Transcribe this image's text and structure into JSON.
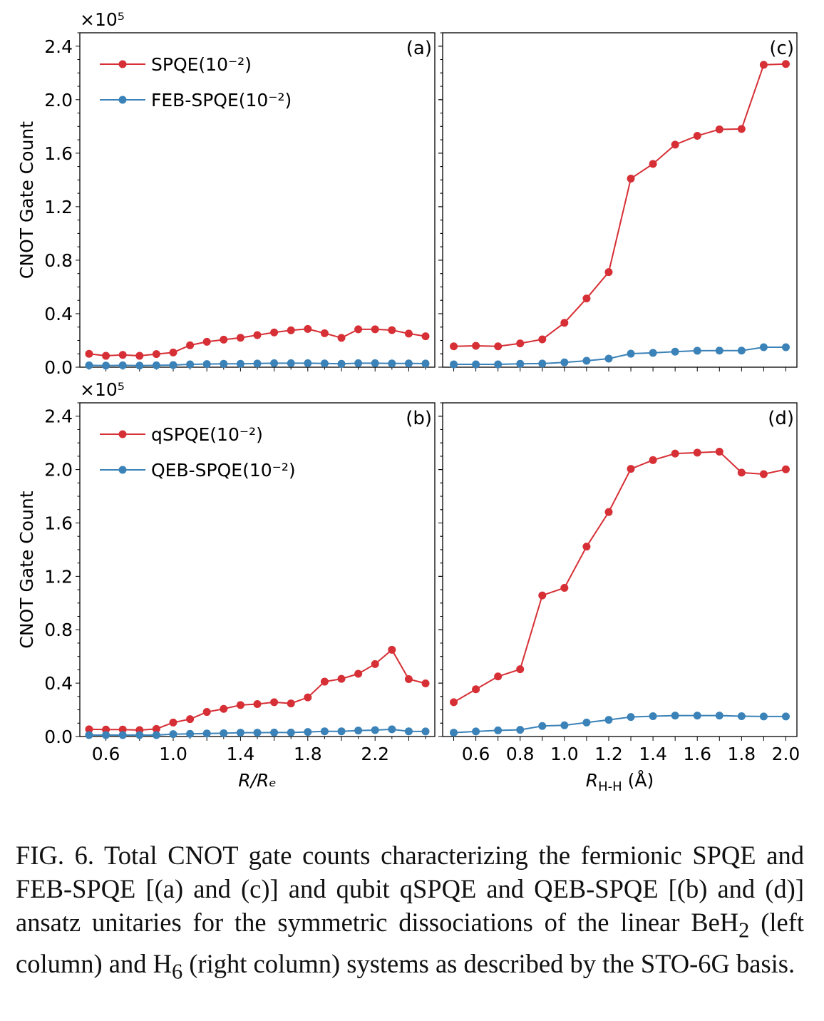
{
  "chart_data": [
    {
      "type": "line",
      "panel_label": "(a)",
      "offset_text": "×10⁵",
      "ylabel": "CNOT Gate Count",
      "xlabel": "",
      "xlim": [
        0.445,
        2.555
      ],
      "ylim": [
        0,
        2.5
      ],
      "yticks": [
        "0.0",
        "0.4",
        "0.8",
        "1.2",
        "1.6",
        "2.0",
        "2.4"
      ],
      "xticks": [],
      "legend_position": "upper-left",
      "grid": false,
      "x": [
        0.5,
        0.6,
        0.7,
        0.8,
        0.9,
        1.0,
        1.1,
        1.2,
        1.3,
        1.4,
        1.5,
        1.6,
        1.7,
        1.8,
        1.9,
        2.0,
        2.1,
        2.2,
        2.3,
        2.4,
        2.5
      ],
      "series": [
        {
          "name": "SPQE(10⁻²)",
          "color": "#d62f35",
          "values": [
            0.1,
            0.085,
            0.092,
            0.085,
            0.098,
            0.11,
            0.164,
            0.19,
            0.206,
            0.22,
            0.24,
            0.26,
            0.276,
            0.286,
            0.254,
            0.219,
            0.283,
            0.283,
            0.277,
            0.251,
            0.231
          ]
        },
        {
          "name": "FEB-SPQE(10⁻²)",
          "color": "#3a82b8",
          "values": [
            0.014,
            0.012,
            0.014,
            0.012,
            0.014,
            0.016,
            0.021,
            0.023,
            0.025,
            0.025,
            0.027,
            0.03,
            0.03,
            0.03,
            0.028,
            0.025,
            0.03,
            0.03,
            0.028,
            0.028,
            0.027
          ]
        }
      ]
    },
    {
      "type": "line",
      "panel_label": "(b)",
      "offset_text": "×10⁵",
      "ylabel": "CNOT Gate Count",
      "xlabel": "R/Rₑ",
      "xlim": [
        0.445,
        2.555
      ],
      "ylim": [
        0,
        2.5
      ],
      "yticks": [
        "0.0",
        "0.4",
        "0.8",
        "1.2",
        "1.6",
        "2.0",
        "2.4"
      ],
      "xticks": [
        "0.6",
        "1.0",
        "1.4",
        "1.8",
        "2.2"
      ],
      "legend_position": "upper-left",
      "grid": false,
      "x": [
        0.5,
        0.6,
        0.7,
        0.8,
        0.9,
        1.0,
        1.1,
        1.2,
        1.3,
        1.4,
        1.5,
        1.6,
        1.7,
        1.8,
        1.9,
        2.0,
        2.1,
        2.2,
        2.3,
        2.4,
        2.5
      ],
      "series": [
        {
          "name": "qSPQE(10⁻²)",
          "color": "#d62f35",
          "values": [
            0.054,
            0.052,
            0.052,
            0.048,
            0.057,
            0.105,
            0.13,
            0.184,
            0.207,
            0.236,
            0.243,
            0.257,
            0.248,
            0.293,
            0.411,
            0.432,
            0.47,
            0.543,
            0.65,
            0.43,
            0.398
          ]
        },
        {
          "name": "QEB-SPQE(10⁻²)",
          "color": "#3a82b8",
          "values": [
            0.011,
            0.011,
            0.011,
            0.011,
            0.011,
            0.018,
            0.02,
            0.023,
            0.025,
            0.029,
            0.029,
            0.03,
            0.03,
            0.034,
            0.039,
            0.039,
            0.045,
            0.048,
            0.054,
            0.039,
            0.038
          ]
        }
      ]
    },
    {
      "type": "line",
      "panel_label": "(c)",
      "xlabel": "",
      "xlim": [
        0.45,
        2.05
      ],
      "ylim": [
        0,
        2.5
      ],
      "xticks": [],
      "grid": false,
      "x": [
        0.5,
        0.6,
        0.7,
        0.8,
        0.9,
        1.0,
        1.1,
        1.2,
        1.3,
        1.4,
        1.5,
        1.6,
        1.7,
        1.8,
        1.9,
        2.0
      ],
      "series": [
        {
          "color": "#d62f35",
          "values": [
            0.156,
            0.16,
            0.156,
            0.178,
            0.208,
            0.332,
            0.514,
            0.711,
            1.41,
            1.52,
            1.664,
            1.73,
            1.778,
            1.781,
            2.261,
            2.267
          ]
        },
        {
          "color": "#3a82b8",
          "values": [
            0.021,
            0.021,
            0.021,
            0.025,
            0.027,
            0.036,
            0.048,
            0.064,
            0.101,
            0.107,
            0.116,
            0.123,
            0.124,
            0.124,
            0.149,
            0.149
          ]
        }
      ]
    },
    {
      "type": "line",
      "panel_label": "(d)",
      "xlabel": "R",
      "xlabel_sub": "H-H",
      "xlabel_unit": " (Å)",
      "xlim": [
        0.45,
        2.05
      ],
      "ylim": [
        0,
        2.5
      ],
      "xticks": [
        "0.6",
        "0.8",
        "1.0",
        "1.2",
        "1.4",
        "1.6",
        "1.8",
        "2.0"
      ],
      "grid": false,
      "x": [
        0.5,
        0.6,
        0.7,
        0.8,
        0.9,
        1.0,
        1.1,
        1.2,
        1.3,
        1.4,
        1.5,
        1.6,
        1.7,
        1.8,
        1.9,
        2.0
      ],
      "series": [
        {
          "color": "#d62f35",
          "values": [
            0.257,
            0.354,
            0.45,
            0.504,
            1.057,
            1.114,
            1.423,
            1.682,
            2.005,
            2.071,
            2.12,
            2.127,
            2.134,
            1.977,
            1.966,
            2.002
          ]
        },
        {
          "color": "#3a82b8",
          "values": [
            0.029,
            0.038,
            0.046,
            0.05,
            0.079,
            0.084,
            0.105,
            0.125,
            0.146,
            0.152,
            0.157,
            0.157,
            0.157,
            0.152,
            0.15,
            0.15
          ]
        }
      ]
    }
  ],
  "caption": {
    "lead": "FIG. 6.",
    "text1": " Total CNOT gate counts characterizing the fermionic SPQE and FEB-SPQE [(a) and (c)] and qubit qSPQE and QEB-SPQE [(b) and (d)] ansatz unitaries for the symmetric dissociations of the linear BeH",
    "sub1": "2",
    "text2": " (left column) and H",
    "sub2": "6",
    "text3": " (right column) systems as described by the STO-6G basis."
  }
}
